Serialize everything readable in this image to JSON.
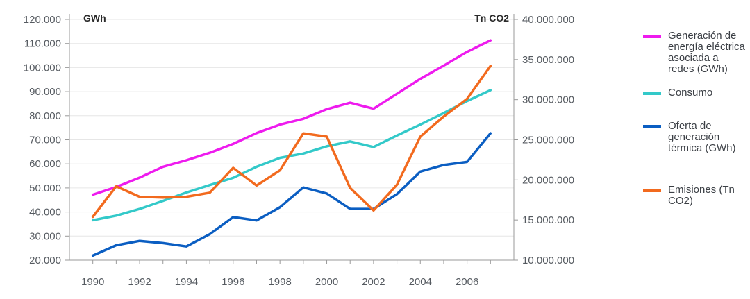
{
  "chart_data": {
    "type": "line",
    "x": [
      1990,
      1991,
      1992,
      1993,
      1994,
      1995,
      1996,
      1997,
      1998,
      1999,
      2000,
      2001,
      2002,
      2003,
      2004,
      2005,
      2006,
      2007
    ],
    "x_tick_labels": [
      "1990",
      "1992",
      "1994",
      "1996",
      "1998",
      "2000",
      "2002",
      "2004",
      "2006"
    ],
    "left_axis": {
      "unit_label": "GWh",
      "ylim": [
        20000,
        120000
      ],
      "tick_labels": [
        "20.000",
        "30.000",
        "40.000",
        "50.000",
        "60.000",
        "70.000",
        "80.000",
        "90.000",
        "100.000",
        "110.000",
        "120.000"
      ]
    },
    "right_axis": {
      "unit_label": "Tn CO2",
      "ylim": [
        10000000,
        40000000
      ],
      "tick_labels": [
        "10.000.000",
        "15.000.000",
        "20.000.000",
        "25.000.000",
        "30.000.000",
        "35.000.000",
        "40.000.000"
      ]
    },
    "grid": "horizontal",
    "legend_position": "right",
    "series": [
      {
        "name": "Generación de energía eléctrica asociada a redes (GWh)",
        "axis": "left",
        "color": "#ee1bee",
        "values": [
          47200,
          50400,
          54300,
          58800,
          61500,
          64600,
          68300,
          72800,
          76300,
          78700,
          82700,
          85400,
          82900,
          89100,
          95300,
          100800,
          106500,
          111300
        ]
      },
      {
        "name": "Consumo",
        "axis": "left",
        "color": "#33c9c9",
        "values": [
          36600,
          38500,
          41300,
          44600,
          48100,
          51200,
          54200,
          58800,
          62500,
          64300,
          67300,
          69300,
          67000,
          71800,
          76300,
          81100,
          86100,
          90600
        ]
      },
      {
        "name": "Oferta de generación térmica (GWh)",
        "axis": "left",
        "color": "#0b5ec2",
        "values": [
          21900,
          26200,
          28000,
          27100,
          25700,
          30800,
          37900,
          36500,
          42000,
          50200,
          47700,
          41300,
          41300,
          47400,
          56800,
          59500,
          60800,
          72700
        ]
      },
      {
        "name": "Emisiones (Tn CO2)",
        "axis": "right",
        "color": "#f26a1e",
        "values": [
          15400000,
          19200000,
          17900000,
          17800000,
          17900000,
          18400000,
          21500000,
          19300000,
          21200000,
          25800000,
          25400000,
          19000000,
          16200000,
          19400000,
          25400000,
          27900000,
          30100000,
          34200000
        ]
      }
    ]
  }
}
